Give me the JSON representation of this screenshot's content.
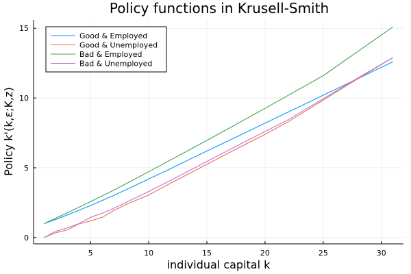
{
  "chart_data": {
    "type": "line",
    "title": "Policy functions in Krusell-Smith",
    "xlabel": "individual capital k",
    "ylabel": "Policy k'(k,ε;K,z)",
    "xlim": [
      0.1,
      31.9
    ],
    "ylim": [
      -0.45,
      15.6
    ],
    "xticks": [
      5,
      10,
      15,
      20,
      25,
      30
    ],
    "yticks": [
      0,
      5,
      10,
      15
    ],
    "grid": true,
    "legend_position": "top-left",
    "series": [
      {
        "name": "Good & Employed",
        "color": "#009AFA",
        "x": [
          1,
          2,
          3,
          4,
          5,
          6,
          7,
          8,
          9,
          10,
          12,
          15,
          18,
          20,
          22,
          25,
          28,
          31
        ],
        "y": [
          1.0,
          1.3,
          1.62,
          1.96,
          2.3,
          2.66,
          3.02,
          3.41,
          3.8,
          4.2,
          4.99,
          6.2,
          7.4,
          8.2,
          9.0,
          10.2,
          11.4,
          12.6
        ]
      },
      {
        "name": "Good & Unemployed",
        "color": "#E36F47",
        "x": [
          1,
          2,
          3,
          4,
          5,
          6,
          7,
          8,
          9,
          10,
          12,
          15,
          18,
          20,
          22,
          25,
          28,
          31
        ],
        "y": [
          0.0,
          0.35,
          0.55,
          0.98,
          1.2,
          1.45,
          1.95,
          2.35,
          2.7,
          3.05,
          3.95,
          5.25,
          6.55,
          7.4,
          8.3,
          9.85,
          11.4,
          12.9
        ]
      },
      {
        "name": "Bad & Employed",
        "color": "#3EA44E",
        "x": [
          1,
          3,
          5,
          7,
          10,
          15,
          20,
          25,
          31
        ],
        "y": [
          1.0,
          1.78,
          2.58,
          3.4,
          4.72,
          6.96,
          9.26,
          11.6,
          15.1
        ]
      },
      {
        "name": "Bad & Unemployed",
        "color": "#C371D2",
        "x": [
          1,
          2,
          3,
          4,
          5,
          6,
          7,
          8,
          9,
          10,
          12,
          15,
          18,
          20,
          22,
          25,
          28,
          31
        ],
        "y": [
          0.0,
          0.45,
          0.7,
          1.0,
          1.45,
          1.75,
          2.1,
          2.5,
          2.9,
          3.3,
          4.15,
          5.45,
          6.75,
          7.6,
          8.45,
          9.95,
          11.45,
          12.9
        ]
      }
    ]
  }
}
